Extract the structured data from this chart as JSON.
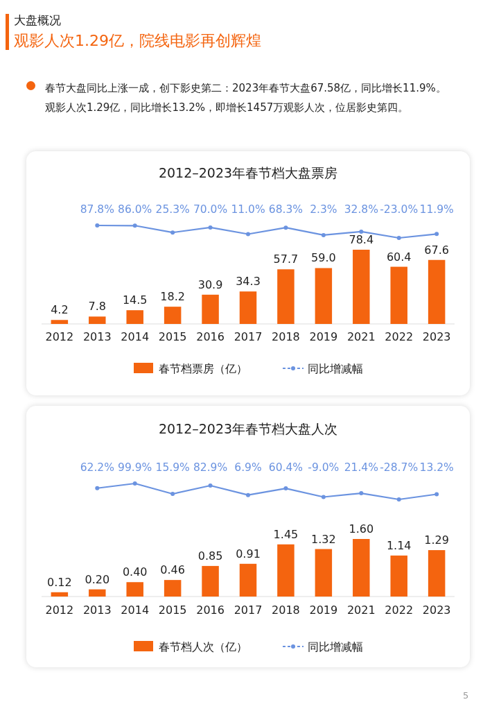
{
  "chart_data": [
    {
      "type": "bar",
      "categories": [
        "2012",
        "2013",
        "2014",
        "2015",
        "2016",
        "2017",
        "2018",
        "2019",
        "2021",
        "2022",
        "2023"
      ],
      "series": [
        {
          "name": "春节档票房（亿）",
          "color": "#f4640f",
          "values": [
            4.2,
            7.8,
            14.5,
            18.2,
            30.9,
            34.3,
            57.7,
            59.0,
            78.4,
            60.4,
            67.6
          ],
          "value_labels": [
            "4.2",
            "7.8",
            "14.5",
            "18.2",
            "30.9",
            "34.3",
            "57.7",
            "59.0",
            "78.4",
            "60.4",
            "67.6"
          ]
        }
      ],
      "legend": "bottom",
      "annotations": [
        "大盘概况",
        "观影人次1.29亿，院线电影再创辉煌",
        "春节大盘同比上涨一成，创下影史第二：2023年春节大盘67.58亿，同比增长11.9%。观影人次1.29亿，同比增长13.2%，即增长1457万观影人次，位居影史第四。"
      ]
    },
    {
      "type": "line",
      "title": "2012–2023年春节档大盘票房",
      "categories": [
        null,
        null,
        null,
        null,
        null,
        null,
        null,
        null,
        null,
        null
      ],
      "series": [
        {
          "name": "同比增减幅",
          "color": "#6b93e0",
          "values": [
            87.8,
            86.0,
            25.3,
            70.0,
            11.0,
            68.3,
            2.3,
            32.8,
            -23.0,
            11.9
          ],
          "value_labels": [
            "87.8%",
            "86.0%",
            "25.3%",
            "70.0%",
            "11.0%",
            "68.3%",
            "2.3%",
            "32.8%",
            "-23.0%",
            "11.9%"
          ]
        }
      ],
      "legend": "bottom",
      "marker": "circle"
    },
    {
      "type": "bar",
      "categories": [
        "2012",
        "2013",
        "2014",
        "2015",
        "2016",
        "2017",
        "2018",
        "2019",
        "2021",
        "2022",
        "2023"
      ],
      "series": [
        {
          "name": "春节档人次（亿）",
          "color": "#f4640f",
          "values": [
            0.12,
            0.2,
            0.4,
            0.46,
            0.85,
            0.91,
            1.45,
            1.32,
            1.6,
            1.14,
            1.29
          ],
          "value_labels": [
            "0.12",
            "0.20",
            "0.40",
            "0.46",
            "0.85",
            "0.91",
            "1.45",
            "1.32",
            "1.60",
            "1.14",
            "1.29"
          ]
        }
      ],
      "legend": "bottom",
      "annotations": [
        "5"
      ]
    },
    {
      "type": "line",
      "title": "2012–2023年春节档大盘人次",
      "categories": [
        null,
        null,
        null,
        null,
        null,
        null,
        null,
        null,
        null,
        null
      ],
      "series": [
        {
          "name": "同比增减幅",
          "color": "#6b93e0",
          "values": [
            62.2,
            99.9,
            15.9,
            82.9,
            6.9,
            60.4,
            -9.0,
            21.4,
            -28.7,
            13.2
          ],
          "value_labels": [
            "62.2%",
            "99.9%",
            "15.9%",
            "82.9%",
            "6.9%",
            "60.4%",
            "-9.0%",
            "21.4%",
            "-28.7%",
            "13.2%"
          ]
        }
      ],
      "legend": "bottom",
      "marker": "circle"
    }
  ]
}
